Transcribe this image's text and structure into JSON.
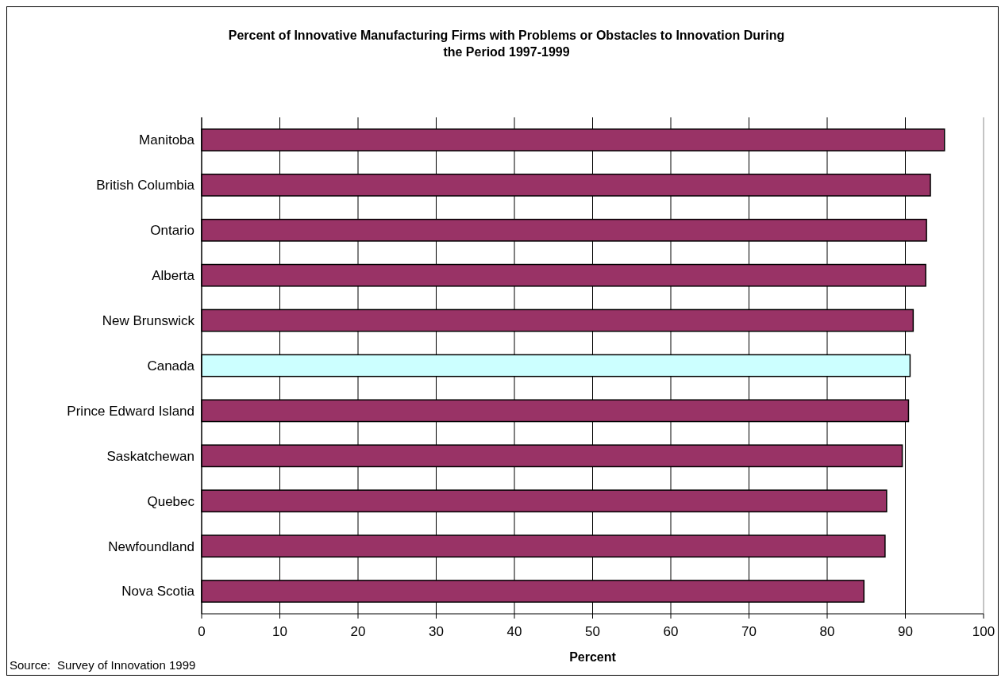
{
  "chart_data": {
    "type": "bar",
    "orientation": "horizontal",
    "title": "Percent of Innovative Manufacturing Firms with Problems or Obstacles to Innovation During the Period 1997-1999",
    "xlabel": "Percent",
    "categories": [
      "Manitoba",
      "British Columbia",
      "Ontario",
      "Alberta",
      "New Brunswick",
      "Canada",
      "Prince Edward Island",
      "Saskatchewan",
      "Quebec",
      "Newfoundland",
      "Nova Scotia"
    ],
    "values": [
      95.0,
      93.2,
      92.7,
      92.6,
      91.0,
      90.6,
      90.4,
      89.6,
      87.6,
      87.4,
      84.7
    ],
    "colors": [
      "#993366",
      "#993366",
      "#993366",
      "#993366",
      "#993366",
      "#ccffff",
      "#993366",
      "#993366",
      "#993366",
      "#993366",
      "#993366"
    ],
    "xlim": [
      0,
      100
    ],
    "xticks": [
      0,
      10,
      20,
      30,
      40,
      50,
      60,
      70,
      80,
      90,
      100
    ],
    "grid": "x",
    "annotations": [
      "Source:  Survey of Innovation 1999"
    ]
  }
}
